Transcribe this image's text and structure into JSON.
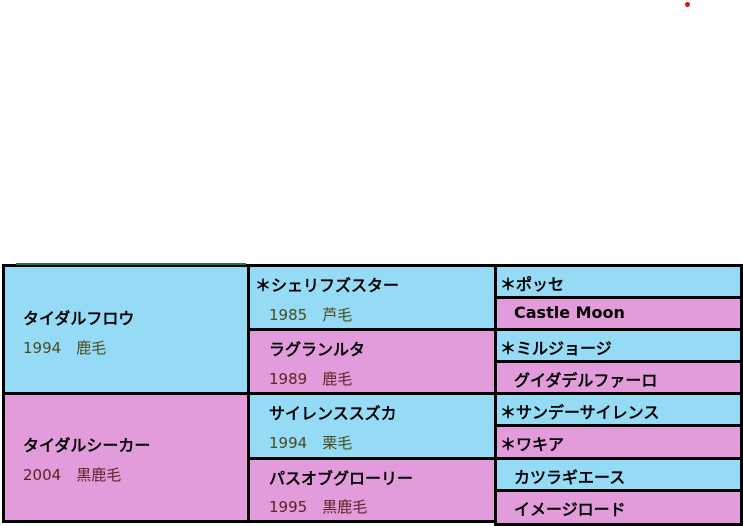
{
  "colors": {
    "male": "#95dbf5",
    "female": "#e39cdb"
  },
  "sire": {
    "name": "タイダルフロウ",
    "year": "1994",
    "color": "鹿毛"
  },
  "dam": {
    "name": "タイダルシーカー",
    "year": "2004",
    "color": "黒鹿毛"
  },
  "gen2": [
    {
      "name": "＊シェリフズスター",
      "year": "1985",
      "color": "芦毛"
    },
    {
      "name": "ラグランルタ",
      "year": "1989",
      "color": "鹿毛"
    },
    {
      "name": "サイレンススズカ",
      "year": "1994",
      "color": "栗毛"
    },
    {
      "name": "パスオブグローリー",
      "year": "1995",
      "color": "黒鹿毛"
    }
  ],
  "gen3": [
    "＊ポッセ",
    "Castle Moon",
    "＊ミルジョージ",
    "グイダデルファーロ",
    "＊サンデーサイレンス",
    "＊ワキア",
    "カツラギエース",
    "イメージロード"
  ]
}
